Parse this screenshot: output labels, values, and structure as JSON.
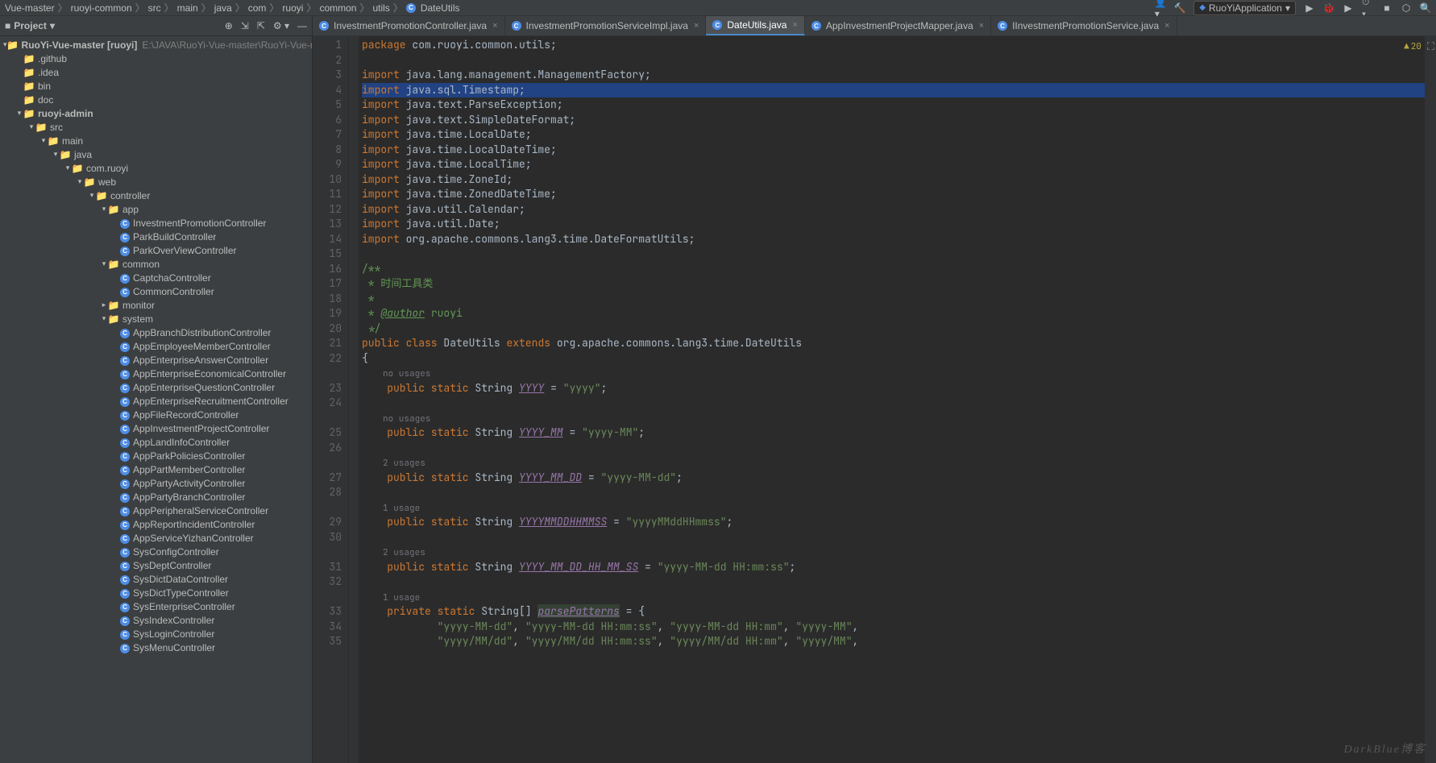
{
  "breadcrumb": [
    "Vue-master",
    "ruoyi-common",
    "src",
    "main",
    "java",
    "com",
    "ruoyi",
    "common",
    "utils",
    "DateUtils"
  ],
  "run_config": "RuoYiApplication",
  "project_label": "Project",
  "tree_root": {
    "name": "RuoYi-Vue-master",
    "hint": "[ruoyi]",
    "path": "E:\\JAVA\\RuoYi-Vue-master\\RuoYi-Vue-master"
  },
  "tree": [
    {
      "d": 1,
      "t": "dir",
      "n": ".github"
    },
    {
      "d": 1,
      "t": "dir",
      "n": ".idea"
    },
    {
      "d": 1,
      "t": "dir",
      "n": "bin"
    },
    {
      "d": 1,
      "t": "dir",
      "n": "doc"
    },
    {
      "d": 1,
      "t": "mod",
      "n": "ruoyi-admin",
      "open": true
    },
    {
      "d": 2,
      "t": "dir",
      "n": "src",
      "open": true
    },
    {
      "d": 3,
      "t": "dir",
      "n": "main",
      "open": true
    },
    {
      "d": 4,
      "t": "dir",
      "n": "java",
      "open": true
    },
    {
      "d": 5,
      "t": "pkg",
      "n": "com.ruoyi",
      "open": true
    },
    {
      "d": 6,
      "t": "pkg",
      "n": "web",
      "open": true
    },
    {
      "d": 7,
      "t": "pkg",
      "n": "controller",
      "open": true
    },
    {
      "d": 8,
      "t": "pkg",
      "n": "app",
      "open": true
    },
    {
      "d": 9,
      "t": "cls",
      "n": "InvestmentPromotionController"
    },
    {
      "d": 9,
      "t": "cls",
      "n": "ParkBuildController"
    },
    {
      "d": 9,
      "t": "cls",
      "n": "ParkOverViewController"
    },
    {
      "d": 8,
      "t": "pkg",
      "n": "common",
      "open": true
    },
    {
      "d": 9,
      "t": "cls",
      "n": "CaptchaController"
    },
    {
      "d": 9,
      "t": "cls",
      "n": "CommonController"
    },
    {
      "d": 8,
      "t": "pkg",
      "n": "monitor",
      "open": false,
      "closed": true
    },
    {
      "d": 8,
      "t": "pkg",
      "n": "system",
      "open": true
    },
    {
      "d": 9,
      "t": "cls",
      "n": "AppBranchDistributionController"
    },
    {
      "d": 9,
      "t": "cls",
      "n": "AppEmployeeMemberController"
    },
    {
      "d": 9,
      "t": "cls",
      "n": "AppEnterpriseAnswerController"
    },
    {
      "d": 9,
      "t": "cls",
      "n": "AppEnterpriseEconomicalController"
    },
    {
      "d": 9,
      "t": "cls",
      "n": "AppEnterpriseQuestionController"
    },
    {
      "d": 9,
      "t": "cls",
      "n": "AppEnterpriseRecruitmentController"
    },
    {
      "d": 9,
      "t": "cls",
      "n": "AppFileRecordController"
    },
    {
      "d": 9,
      "t": "cls",
      "n": "AppInvestmentProjectController"
    },
    {
      "d": 9,
      "t": "cls",
      "n": "AppLandInfoController"
    },
    {
      "d": 9,
      "t": "cls",
      "n": "AppParkPoliciesController"
    },
    {
      "d": 9,
      "t": "cls",
      "n": "AppPartMemberController"
    },
    {
      "d": 9,
      "t": "cls",
      "n": "AppPartyActivityController"
    },
    {
      "d": 9,
      "t": "cls",
      "n": "AppPartyBranchController"
    },
    {
      "d": 9,
      "t": "cls",
      "n": "AppPeripheralServiceController"
    },
    {
      "d": 9,
      "t": "cls",
      "n": "AppReportIncidentController"
    },
    {
      "d": 9,
      "t": "cls",
      "n": "AppServiceYizhanController"
    },
    {
      "d": 9,
      "t": "cls",
      "n": "SysConfigController"
    },
    {
      "d": 9,
      "t": "cls",
      "n": "SysDeptController"
    },
    {
      "d": 9,
      "t": "cls",
      "n": "SysDictDataController"
    },
    {
      "d": 9,
      "t": "cls",
      "n": "SysDictTypeController"
    },
    {
      "d": 9,
      "t": "cls",
      "n": "SysEnterpriseController"
    },
    {
      "d": 9,
      "t": "cls",
      "n": "SysIndexController"
    },
    {
      "d": 9,
      "t": "cls",
      "n": "SysLoginController"
    },
    {
      "d": 9,
      "t": "cls",
      "n": "SysMenuController"
    }
  ],
  "tabs": [
    {
      "n": "InvestmentPromotionController.java"
    },
    {
      "n": "InvestmentPromotionServiceImpl.java"
    },
    {
      "n": "DateUtils.java",
      "active": true
    },
    {
      "n": "AppInvestmentProjectMapper.java"
    },
    {
      "n": "IInvestmentPromotionService.java"
    }
  ],
  "warn_count": "20",
  "code_lines": [
    {
      "n": 1,
      "h": "<span class='kw'>package</span> <span class='txt'>com.ruoyi.common.utils;</span>"
    },
    {
      "n": 2,
      "h": ""
    },
    {
      "n": 3,
      "h": "<span class='kw'>import</span> <span class='txt'>java.lang.management.ManagementFactory;</span>"
    },
    {
      "n": 4,
      "h": "<span class='kw'>import</span> <span class='txt'>java.sql.Timestamp;</span>",
      "hl": true
    },
    {
      "n": 5,
      "h": "<span class='kw'>import</span> <span class='txt'>java.text.ParseException;</span>"
    },
    {
      "n": 6,
      "h": "<span class='kw'>import</span> <span class='txt'>java.text.SimpleDateFormat;</span>"
    },
    {
      "n": 7,
      "h": "<span class='kw'>import</span> <span class='txt'>java.time.LocalDate;</span>"
    },
    {
      "n": 8,
      "h": "<span class='kw'>import</span> <span class='txt'>java.time.LocalDateTime;</span>"
    },
    {
      "n": 9,
      "h": "<span class='kw'>import</span> <span class='txt'>java.time.LocalTime;</span>"
    },
    {
      "n": 10,
      "h": "<span class='kw'>import</span> <span class='txt'>java.time.ZoneId;</span>"
    },
    {
      "n": 11,
      "h": "<span class='kw'>import</span> <span class='txt'>java.time.ZonedDateTime;</span>"
    },
    {
      "n": 12,
      "h": "<span class='kw'>import</span> <span class='txt'>java.util.Calendar;</span>"
    },
    {
      "n": 13,
      "h": "<span class='kw'>import</span> <span class='txt'>java.util.Date;</span>"
    },
    {
      "n": 14,
      "h": "<span class='kw'>import</span> <span class='txt'>org.apache.commons.lang3.time.DateFormatUtils;</span>"
    },
    {
      "n": 15,
      "h": ""
    },
    {
      "n": 16,
      "h": "<span class='doc'>/**</span>"
    },
    {
      "n": 17,
      "h": "<span class='doc'> * 时间工具类</span>"
    },
    {
      "n": 18,
      "h": "<span class='doc'> *</span>"
    },
    {
      "n": 19,
      "h": "<span class='doc'> * </span><span class='tag'>@author</span><span class='doc'> ruoyi</span>"
    },
    {
      "n": 20,
      "h": "<span class='doc'> */</span>"
    },
    {
      "n": 21,
      "h": "<span class='kw'>public class</span> <span class='txt'>DateUtils</span> <span class='kw'>extends</span> <span class='txt'>org.apache.commons.lang3.time.DateUtils</span>"
    },
    {
      "n": 22,
      "h": "<span class='txt'>{</span>"
    },
    {
      "hint": "no usages"
    },
    {
      "n": 23,
      "h": "    <span class='kw'>public static</span> <span class='txt'>String</span> <span class='field2'>YYYY</span> <span class='txt'>=</span> <span class='str'>\"yyyy\"</span><span class='txt'>;</span>"
    },
    {
      "n": 24,
      "h": ""
    },
    {
      "hint": "no usages"
    },
    {
      "n": 25,
      "h": "    <span class='kw'>public static</span> <span class='txt'>String</span> <span class='field2'>YYYY_MM</span> <span class='txt'>=</span> <span class='str'>\"yyyy-MM\"</span><span class='txt'>;</span>"
    },
    {
      "n": 26,
      "h": ""
    },
    {
      "hint": "2 usages"
    },
    {
      "n": 27,
      "h": "    <span class='kw'>public static</span> <span class='txt'>String</span> <span class='field2'>YYYY_MM_DD</span> <span class='txt'>=</span> <span class='str'>\"yyyy-MM-dd\"</span><span class='txt'>;</span>"
    },
    {
      "n": 28,
      "h": ""
    },
    {
      "hint": "1 usage"
    },
    {
      "n": 29,
      "h": "    <span class='kw'>public static</span> <span class='txt'>String</span> <span class='field2'>YYYYMMDDHHMMSS</span> <span class='txt'>=</span> <span class='str'>\"yyyyMMddHHmmss\"</span><span class='txt'>;</span>"
    },
    {
      "n": 30,
      "h": ""
    },
    {
      "hint": "2 usages"
    },
    {
      "n": 31,
      "h": "    <span class='kw'>public static</span> <span class='txt'>String</span> <span class='field2'>YYYY_MM_DD_HH_MM_SS</span> <span class='txt'>=</span> <span class='str'>\"yyyy-MM-dd HH:mm:ss\"</span><span class='txt'>;</span>"
    },
    {
      "n": 32,
      "h": ""
    },
    {
      "hint": "1 usage"
    },
    {
      "n": 33,
      "h": "    <span class='kw'>private static</span> <span class='txt'>String[]</span> <span class='field3'>parsePatterns</span> <span class='txt'>= {</span>"
    },
    {
      "n": 34,
      "h": "            <span class='str'>\"yyyy-MM-dd\"</span><span class='txt'>,</span> <span class='str'>\"yyyy-MM-dd HH:mm:ss\"</span><span class='txt'>,</span> <span class='str'>\"yyyy-MM-dd HH:mm\"</span><span class='txt'>,</span> <span class='str'>\"yyyy-MM\"</span><span class='txt'>,</span>"
    },
    {
      "n": 35,
      "h": "            <span class='str'>\"yyyy/MM/dd\"</span><span class='txt'>,</span> <span class='str'>\"yyyy/MM/dd HH:mm:ss\"</span><span class='txt'>,</span> <span class='str'>\"yyyy/MM/dd HH:mm\"</span><span class='txt'>,</span> <span class='str'>\"yyyy/MM\"</span><span class='txt'>,</span>"
    }
  ],
  "watermark": "DarkBlue博客"
}
